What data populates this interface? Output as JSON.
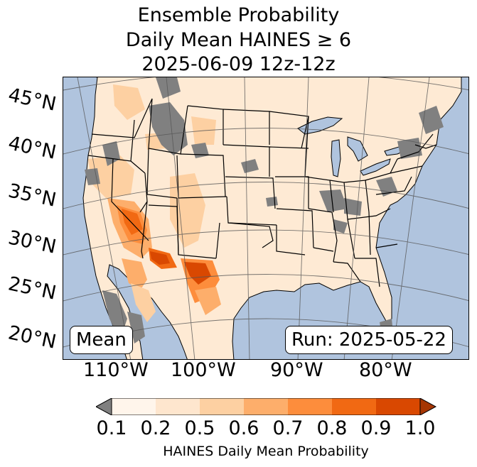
{
  "title": {
    "line1": "Ensemble Probability",
    "line2": "Daily Mean HAINES ≥ 6",
    "line3": "2025-06-09 12z-12z"
  },
  "map": {
    "latitude_labels": [
      "45°N",
      "40°N",
      "35°N",
      "30°N",
      "25°N",
      "20°N"
    ],
    "longitude_labels": [
      "110°W",
      "100°W",
      "90°W",
      "80°W"
    ],
    "stat_label": "Mean",
    "run_label": "Run: 2025-05-22",
    "colors": {
      "ocean": "#b0c4de",
      "no_data": "#808080",
      "background_land": "#fff5eb"
    }
  },
  "colorbar": {
    "ticks": [
      "0.1",
      "0.2",
      "0.5",
      "0.6",
      "0.7",
      "0.8",
      "0.9",
      "1.0"
    ],
    "colors": [
      "#fff5eb",
      "#fee6ce",
      "#fdd0a2",
      "#fdae6b",
      "#fd8d3c",
      "#f16913",
      "#d94801",
      "#a63603"
    ],
    "under_color": "#808080",
    "label": "HAINES Daily Mean Probability"
  }
}
